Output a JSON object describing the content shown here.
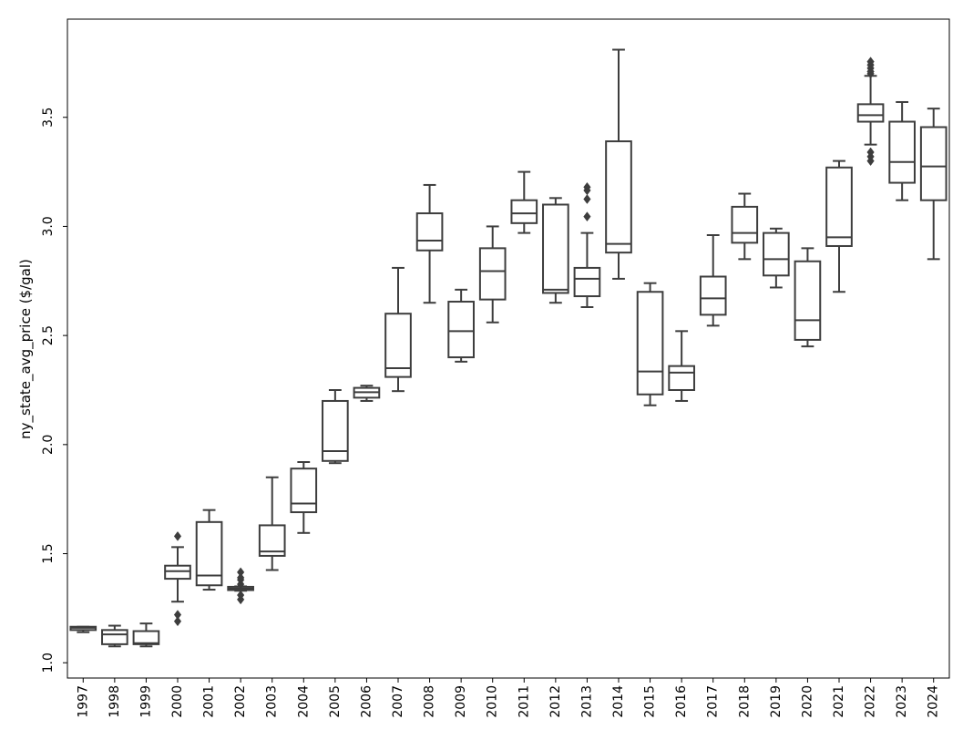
{
  "chart_data": {
    "type": "box",
    "ylabel": "ny_state_avg_price ($/gal)",
    "xlabel": "",
    "ylim": [
      0.93,
      3.95
    ],
    "yticks": [
      1.0,
      1.5,
      2.0,
      2.5,
      3.0,
      3.5
    ],
    "grid": false,
    "box_color": "#3d3d3d",
    "boxes": [
      {
        "category": "1997",
        "whisker_low": 1.14,
        "q1": 1.15,
        "median": 1.16,
        "q3": 1.165,
        "whisker_high": 1.165,
        "outliers": []
      },
      {
        "category": "1998",
        "whisker_low": 1.075,
        "q1": 1.085,
        "median": 1.13,
        "q3": 1.15,
        "whisker_high": 1.17,
        "outliers": []
      },
      {
        "category": "1999",
        "whisker_low": 1.075,
        "q1": 1.085,
        "median": 1.09,
        "q3": 1.145,
        "whisker_high": 1.18,
        "outliers": []
      },
      {
        "category": "2000",
        "whisker_low": 1.28,
        "q1": 1.385,
        "median": 1.42,
        "q3": 1.445,
        "whisker_high": 1.53,
        "outliers": [
          1.19,
          1.22,
          1.58
        ]
      },
      {
        "category": "2001",
        "whisker_low": 1.335,
        "q1": 1.355,
        "median": 1.4,
        "q3": 1.645,
        "whisker_high": 1.7,
        "outliers": []
      },
      {
        "category": "2002",
        "whisker_low": 1.33,
        "q1": 1.333,
        "median": 1.34,
        "q3": 1.348,
        "whisker_high": 1.35,
        "outliers": [
          1.29,
          1.31,
          1.36,
          1.38,
          1.39,
          1.415
        ]
      },
      {
        "category": "2003",
        "whisker_low": 1.425,
        "q1": 1.49,
        "median": 1.51,
        "q3": 1.63,
        "whisker_high": 1.85,
        "outliers": []
      },
      {
        "category": "2004",
        "whisker_low": 1.595,
        "q1": 1.69,
        "median": 1.73,
        "q3": 1.89,
        "whisker_high": 1.92,
        "outliers": []
      },
      {
        "category": "2005",
        "whisker_low": 1.915,
        "q1": 1.925,
        "median": 1.97,
        "q3": 2.2,
        "whisker_high": 2.25,
        "outliers": []
      },
      {
        "category": "2006",
        "whisker_low": 2.2,
        "q1": 2.215,
        "median": 2.24,
        "q3": 2.26,
        "whisker_high": 2.27,
        "outliers": []
      },
      {
        "category": "2007",
        "whisker_low": 2.245,
        "q1": 2.31,
        "median": 2.35,
        "q3": 2.6,
        "whisker_high": 2.81,
        "outliers": []
      },
      {
        "category": "2008",
        "whisker_low": 2.65,
        "q1": 2.89,
        "median": 2.935,
        "q3": 3.06,
        "whisker_high": 3.19,
        "outliers": []
      },
      {
        "category": "2009",
        "whisker_low": 2.38,
        "q1": 2.4,
        "median": 2.52,
        "q3": 2.655,
        "whisker_high": 2.71,
        "outliers": []
      },
      {
        "category": "2010",
        "whisker_low": 2.56,
        "q1": 2.665,
        "median": 2.795,
        "q3": 2.9,
        "whisker_high": 3.0,
        "outliers": []
      },
      {
        "category": "2011",
        "whisker_low": 2.97,
        "q1": 3.015,
        "median": 3.06,
        "q3": 3.12,
        "whisker_high": 3.25,
        "outliers": []
      },
      {
        "category": "2012",
        "whisker_low": 2.65,
        "q1": 2.695,
        "median": 2.71,
        "q3": 3.1,
        "whisker_high": 3.13,
        "outliers": []
      },
      {
        "category": "2013",
        "whisker_low": 2.63,
        "q1": 2.68,
        "median": 2.76,
        "q3": 2.81,
        "whisker_high": 2.97,
        "outliers": [
          3.045,
          3.125,
          3.165,
          3.18
        ]
      },
      {
        "category": "2014",
        "whisker_low": 2.76,
        "q1": 2.88,
        "median": 2.92,
        "q3": 3.39,
        "whisker_high": 3.81,
        "outliers": []
      },
      {
        "category": "2015",
        "whisker_low": 2.18,
        "q1": 2.23,
        "median": 2.335,
        "q3": 2.7,
        "whisker_high": 2.74,
        "outliers": []
      },
      {
        "category": "2016",
        "whisker_low": 2.2,
        "q1": 2.25,
        "median": 2.33,
        "q3": 2.36,
        "whisker_high": 2.52,
        "outliers": []
      },
      {
        "category": "2017",
        "whisker_low": 2.545,
        "q1": 2.595,
        "median": 2.67,
        "q3": 2.77,
        "whisker_high": 2.96,
        "outliers": []
      },
      {
        "category": "2018",
        "whisker_low": 2.85,
        "q1": 2.925,
        "median": 2.97,
        "q3": 3.09,
        "whisker_high": 3.15,
        "outliers": []
      },
      {
        "category": "2019",
        "whisker_low": 2.72,
        "q1": 2.775,
        "median": 2.85,
        "q3": 2.97,
        "whisker_high": 2.99,
        "outliers": []
      },
      {
        "category": "2020",
        "whisker_low": 2.45,
        "q1": 2.48,
        "median": 2.57,
        "q3": 2.84,
        "whisker_high": 2.9,
        "outliers": []
      },
      {
        "category": "2021",
        "whisker_low": 2.7,
        "q1": 2.91,
        "median": 2.95,
        "q3": 3.27,
        "whisker_high": 3.3,
        "outliers": []
      },
      {
        "category": "2022",
        "whisker_low": 3.375,
        "q1": 3.48,
        "median": 3.51,
        "q3": 3.56,
        "whisker_high": 3.69,
        "outliers": [
          3.3,
          3.32,
          3.34,
          3.7,
          3.71,
          3.725,
          3.74,
          3.755
        ]
      },
      {
        "category": "2023",
        "whisker_low": 3.12,
        "q1": 3.2,
        "median": 3.295,
        "q3": 3.48,
        "whisker_high": 3.57,
        "outliers": []
      },
      {
        "category": "2024",
        "whisker_low": 2.85,
        "q1": 3.12,
        "median": 3.275,
        "q3": 3.455,
        "whisker_high": 3.54,
        "outliers": []
      }
    ]
  }
}
